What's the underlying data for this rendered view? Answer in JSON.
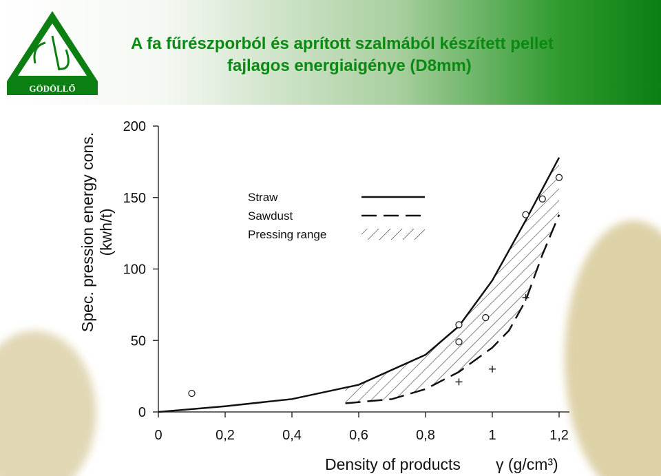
{
  "logo": "GÖDÖLLŐ",
  "header": {
    "title": [
      "A fa fűrészporból és aprított szalmából készített pellet",
      "fajlagos energiaigénye (D8mm)"
    ]
  },
  "chart_data": {
    "type": "line",
    "ylabel": [
      "Spec. pression energy cons.",
      "(kwh/t)"
    ],
    "xlabel": "Density of products",
    "xlabel_unit": "γ (g/cm³)",
    "xlim": [
      0,
      1.2
    ],
    "ylim": [
      0,
      200
    ],
    "xticks": [
      0,
      {
        "value": 0.2,
        "label": "0,2"
      },
      {
        "value": 0.4,
        "label": "0,4"
      },
      {
        "value": 0.6,
        "label": "0,6"
      },
      {
        "value": 0.8,
        "label": "0,8"
      },
      1,
      {
        "value": 1.2,
        "label": "1,2"
      }
    ],
    "yticks": [
      0,
      50,
      100,
      150,
      200
    ],
    "series": [
      {
        "name": "Straw",
        "color": "#111111",
        "dash": "solid",
        "x": [
          0,
          0.2,
          0.4,
          0.6,
          0.8,
          0.9,
          1.0,
          1.1,
          1.2
        ],
        "values": [
          0,
          4,
          9,
          19,
          40,
          60,
          92,
          134,
          178
        ]
      },
      {
        "name": "Sawdust",
        "color": "#111111",
        "dash": "dashed",
        "x": [
          0.56,
          0.7,
          0.8,
          0.9,
          1.0,
          1.05,
          1.1,
          1.15,
          1.2
        ],
        "values": [
          6,
          9,
          16,
          28,
          45,
          57,
          78,
          110,
          138
        ]
      }
    ],
    "range": {
      "name": "Pressing range",
      "between": [
        0,
        1
      ],
      "fill": "hatch"
    },
    "markers": [
      {
        "shape": "circle",
        "x": [
          0.1,
          0.9,
          0.9,
          0.98,
          1.1,
          1.15,
          1.2
        ],
        "values": [
          13,
          61,
          49,
          66,
          138,
          149,
          164
        ]
      },
      {
        "shape": "plus",
        "x": [
          0.9,
          1.0,
          1.1
        ],
        "values": [
          21,
          30,
          80
        ]
      }
    ]
  }
}
